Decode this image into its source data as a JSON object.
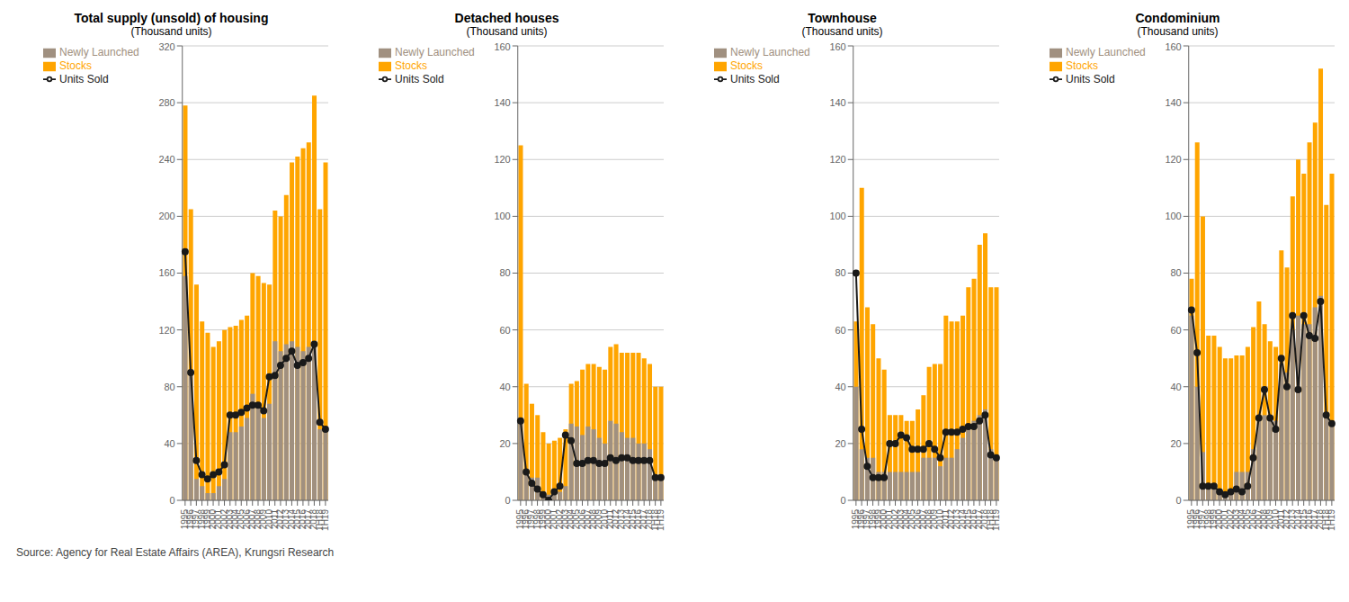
{
  "chart_data": [
    {
      "type": "bar",
      "title": "Total supply (unsold) of housing",
      "subtitle": "(Thousand units)",
      "categories": [
        "1995",
        "1996",
        "1997",
        "1998",
        "1999",
        "2000",
        "2001",
        "2002",
        "2003",
        "2004",
        "2005",
        "2006",
        "2007",
        "2008",
        "2009",
        "2010",
        "2011",
        "2012",
        "2013",
        "2014",
        "2015",
        "2016",
        "2017",
        "2018",
        "1H18",
        "1H19"
      ],
      "series": [
        {
          "name": "Stocks",
          "type": "bar",
          "color": "#FFA500",
          "values": [
            278,
            205,
            152,
            126,
            118,
            108,
            112,
            120,
            122,
            123,
            127,
            130,
            160,
            158,
            153,
            152,
            204,
            200,
            215,
            238,
            242,
            248,
            252,
            285,
            205,
            238
          ]
        },
        {
          "name": "Newly Launched",
          "type": "bar",
          "color": "#a09080",
          "values": [
            158,
            88,
            15,
            10,
            5,
            5,
            10,
            15,
            48,
            48,
            52,
            58,
            75,
            65,
            58,
            68,
            112,
            105,
            110,
            112,
            108,
            105,
            108,
            112,
            50,
            50
          ]
        },
        {
          "name": "Units Sold",
          "type": "line",
          "color": "#1a1a1a",
          "marker": "circle",
          "values": [
            175,
            90,
            28,
            18,
            15,
            18,
            20,
            25,
            60,
            60,
            62,
            65,
            67,
            67,
            63,
            87,
            88,
            95,
            100,
            105,
            95,
            97,
            100,
            110,
            55,
            50
          ]
        }
      ],
      "ylim": [
        0,
        320
      ],
      "yticks": [
        0,
        40,
        80,
        120,
        160,
        200,
        240,
        280,
        320
      ],
      "grid": true,
      "legend": "upper left"
    },
    {
      "type": "bar",
      "title": "Detached houses",
      "subtitle": "(Thousand units)",
      "categories": [
        "1995",
        "1996",
        "1997",
        "1998",
        "1999",
        "2000",
        "2001",
        "2002",
        "2003",
        "2004",
        "2005",
        "2006",
        "2007",
        "2008",
        "2009",
        "2010",
        "2011",
        "2012",
        "2013",
        "2014",
        "2015",
        "2016",
        "2017",
        "2018",
        "1H18",
        "1H19"
      ],
      "series": [
        {
          "name": "Stocks",
          "type": "bar",
          "color": "#FFA500",
          "values": [
            125,
            41,
            34,
            30,
            24,
            20,
            21,
            22,
            25,
            41,
            42,
            46,
            48,
            48,
            47,
            46,
            54,
            55,
            52,
            52,
            52,
            52,
            50,
            48,
            40,
            40
          ]
        },
        {
          "name": "Newly Launched",
          "type": "bar",
          "color": "#a09080",
          "values": [
            27,
            10,
            8,
            8,
            3,
            2,
            2,
            3,
            5,
            27,
            26,
            23,
            26,
            25,
            22,
            20,
            28,
            27,
            24,
            22,
            22,
            20,
            20,
            18,
            8,
            8
          ]
        },
        {
          "name": "Units Sold",
          "type": "line",
          "color": "#1a1a1a",
          "marker": "circle",
          "values": [
            28,
            10,
            6,
            4,
            2,
            0,
            3,
            5,
            23,
            21,
            13,
            13,
            14,
            14,
            13,
            13,
            15,
            14,
            15,
            15,
            14,
            14,
            14,
            14,
            8,
            8
          ]
        }
      ],
      "ylim": [
        0,
        160
      ],
      "yticks": [
        0,
        20,
        40,
        60,
        80,
        100,
        120,
        140,
        160
      ],
      "grid": true,
      "legend": "upper left"
    },
    {
      "type": "bar",
      "title": "Townhouse",
      "subtitle": "(Thousand units)",
      "categories": [
        "1995",
        "1996",
        "1997",
        "1998",
        "1999",
        "2000",
        "2001",
        "2002",
        "2003",
        "2004",
        "2005",
        "2006",
        "2007",
        "2008",
        "2009",
        "2010",
        "2011",
        "2012",
        "2013",
        "2014",
        "2015",
        "2016",
        "2017",
        "2018",
        "1H18",
        "1H19"
      ],
      "series": [
        {
          "name": "Stocks",
          "type": "bar",
          "color": "#FFA500",
          "values": [
            63,
            110,
            68,
            62,
            50,
            46,
            30,
            30,
            30,
            28,
            28,
            32,
            37,
            47,
            48,
            48,
            65,
            63,
            63,
            65,
            75,
            78,
            90,
            94,
            75,
            75
          ]
        },
        {
          "name": "Newly Launched",
          "type": "bar",
          "color": "#a09080",
          "values": [
            40,
            18,
            15,
            15,
            10,
            10,
            10,
            10,
            10,
            10,
            10,
            10,
            15,
            15,
            15,
            12,
            15,
            15,
            18,
            22,
            25,
            28,
            30,
            32,
            18,
            15
          ]
        },
        {
          "name": "Units Sold",
          "type": "line",
          "color": "#1a1a1a",
          "marker": "circle",
          "values": [
            80,
            25,
            12,
            8,
            8,
            8,
            20,
            20,
            23,
            22,
            18,
            18,
            18,
            20,
            18,
            15,
            24,
            24,
            24,
            25,
            26,
            26,
            28,
            30,
            16,
            15
          ]
        }
      ],
      "ylim": [
        0,
        160
      ],
      "yticks": [
        0,
        20,
        40,
        60,
        80,
        100,
        120,
        140,
        160
      ],
      "grid": true,
      "legend": "upper left"
    },
    {
      "type": "bar",
      "title": "Condominium",
      "subtitle": "(Thousand units)",
      "categories": [
        "1995",
        "1996",
        "1997",
        "1998",
        "1999",
        "2000",
        "2001",
        "2002",
        "2003",
        "2004",
        "2005",
        "2006",
        "2007",
        "2008",
        "2009",
        "2010",
        "2011",
        "2012",
        "2013",
        "2014",
        "2015",
        "2016",
        "2017",
        "2018",
        "1H18",
        "1H19"
      ],
      "series": [
        {
          "name": "Stocks",
          "type": "bar",
          "color": "#FFA500",
          "values": [
            78,
            126,
            100,
            58,
            58,
            54,
            50,
            50,
            51,
            51,
            54,
            61,
            70,
            62,
            56,
            54,
            88,
            82,
            107,
            120,
            115,
            126,
            133,
            152,
            104,
            115
          ]
        },
        {
          "name": "Newly Launched",
          "type": "bar",
          "color": "#a09080",
          "values": [
            65,
            40,
            17,
            5,
            5,
            3,
            3,
            3,
            10,
            10,
            10,
            18,
            28,
            30,
            30,
            28,
            48,
            45,
            60,
            65,
            62,
            62,
            68,
            72,
            30,
            28
          ]
        },
        {
          "name": "Units Sold",
          "type": "line",
          "color": "#1a1a1a",
          "marker": "circle",
          "values": [
            67,
            52,
            5,
            5,
            5,
            3,
            2,
            3,
            4,
            3,
            5,
            15,
            29,
            39,
            29,
            25,
            50,
            40,
            65,
            39,
            65,
            58,
            57,
            70,
            30,
            27
          ]
        }
      ],
      "ylim": [
        0,
        160
      ],
      "yticks": [
        0,
        20,
        40,
        60,
        80,
        100,
        120,
        140,
        160
      ],
      "grid": true,
      "legend": "upper left"
    }
  ],
  "footer": "Source: Agency for Real Estate Affairs (AREA), Krungsri Research"
}
